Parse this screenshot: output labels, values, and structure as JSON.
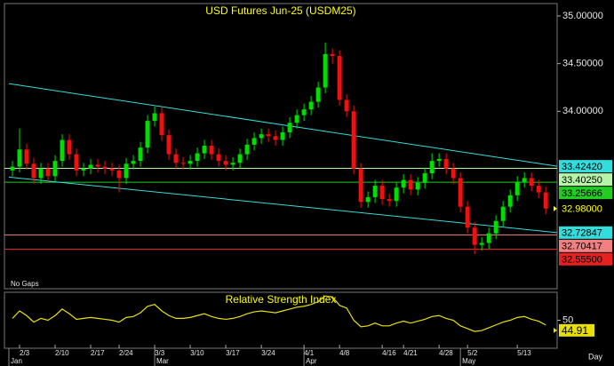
{
  "chart_data": [
    {
      "type": "candlestick",
      "title": "USD  Futures  Jun-25  (USDM25)",
      "note": "No Gaps",
      "open": [
        33.38,
        33.42,
        33.6,
        33.45,
        33.3,
        33.4,
        33.32,
        33.48,
        33.7,
        33.55,
        33.38,
        33.4,
        33.44,
        33.42,
        33.4,
        33.38,
        33.3,
        33.45,
        33.48,
        33.62,
        33.9,
        33.98,
        33.75,
        33.55,
        33.46,
        33.45,
        33.48,
        33.56,
        33.64,
        33.55,
        33.48,
        33.44,
        33.46,
        33.55,
        33.65,
        33.72,
        33.76,
        33.74,
        33.7,
        33.78,
        33.88,
        33.96,
        34.02,
        34.1,
        34.25,
        34.6,
        34.58,
        34.12,
        34.0,
        33.4,
        33.05,
        33.1,
        33.22,
        33.08,
        33.06,
        33.2,
        33.28,
        33.18,
        33.25,
        33.35,
        33.48,
        33.5,
        33.4,
        33.3,
        33.0,
        32.78,
        32.6,
        32.62,
        32.72,
        32.85,
        33.0,
        33.12,
        33.26,
        33.3,
        33.22,
        33.15
      ],
      "high": [
        33.48,
        33.82,
        33.66,
        33.51,
        33.46,
        33.46,
        33.54,
        33.76,
        33.76,
        33.61,
        33.46,
        33.5,
        33.5,
        33.48,
        33.46,
        33.44,
        33.51,
        33.54,
        33.68,
        33.96,
        34.05,
        34.04,
        33.81,
        33.61,
        33.52,
        33.54,
        33.62,
        33.7,
        33.7,
        33.61,
        33.54,
        33.52,
        33.61,
        33.71,
        33.78,
        33.82,
        33.82,
        33.8,
        33.84,
        33.94,
        34.02,
        34.08,
        34.16,
        34.31,
        34.72,
        34.66,
        34.64,
        34.18,
        34.06,
        33.46,
        33.16,
        33.28,
        33.28,
        33.14,
        33.26,
        33.34,
        33.34,
        33.31,
        33.41,
        33.56,
        33.56,
        33.56,
        33.46,
        33.36,
        33.06,
        32.84,
        32.68,
        32.78,
        32.91,
        33.06,
        33.18,
        33.32,
        33.36,
        33.36,
        33.28,
        33.21
      ],
      "low": [
        33.32,
        33.36,
        33.39,
        33.24,
        33.24,
        33.26,
        33.26,
        33.42,
        33.49,
        33.32,
        33.32,
        33.34,
        33.36,
        33.34,
        33.32,
        33.15,
        33.24,
        33.39,
        33.42,
        33.56,
        33.84,
        33.69,
        33.49,
        33.4,
        33.39,
        33.39,
        33.42,
        33.5,
        33.49,
        33.42,
        33.38,
        33.38,
        33.4,
        33.49,
        33.59,
        33.66,
        33.68,
        33.64,
        33.64,
        33.72,
        33.82,
        33.9,
        33.96,
        34.04,
        34.19,
        34.5,
        34.06,
        33.94,
        33.34,
        32.99,
        32.99,
        33.04,
        33.02,
        33.0,
        33.0,
        33.14,
        33.12,
        33.12,
        33.19,
        33.29,
        33.42,
        33.34,
        33.24,
        32.94,
        32.72,
        32.5,
        32.54,
        32.56,
        32.66,
        32.79,
        32.94,
        33.06,
        33.2,
        33.16,
        33.09,
        32.92
      ],
      "close": [
        33.42,
        33.6,
        33.45,
        33.3,
        33.4,
        33.32,
        33.48,
        33.7,
        33.55,
        33.38,
        33.4,
        33.44,
        33.42,
        33.4,
        33.38,
        33.3,
        33.45,
        33.48,
        33.62,
        33.9,
        33.98,
        33.75,
        33.55,
        33.46,
        33.45,
        33.48,
        33.56,
        33.64,
        33.55,
        33.48,
        33.44,
        33.46,
        33.55,
        33.65,
        33.72,
        33.76,
        33.74,
        33.7,
        33.78,
        33.88,
        33.96,
        34.02,
        34.1,
        34.25,
        34.6,
        34.58,
        34.12,
        34.0,
        33.4,
        33.05,
        33.1,
        33.22,
        33.08,
        33.06,
        33.2,
        33.28,
        33.18,
        33.25,
        33.35,
        33.48,
        33.5,
        33.4,
        33.3,
        33.0,
        32.78,
        32.6,
        32.62,
        32.72,
        32.85,
        33.0,
        33.12,
        33.26,
        33.3,
        33.22,
        33.15,
        32.98
      ],
      "up_color": "#00dd00",
      "down_color": "#ee1111",
      "xlim": [
        -0.5,
        76.6
      ],
      "ylim": [
        32.14,
        35.13
      ],
      "yticks": [
        {
          "value": 35,
          "label": "35.00000"
        },
        {
          "value": 34.5,
          "label": "34.50000"
        },
        {
          "value": 34,
          "label": "34.00000"
        }
      ],
      "trendlines": [
        {
          "x": [
            -0.5,
            76.6
          ],
          "values": [
            34.29,
            33.4242
          ],
          "end_label": "33.42420",
          "color": "#33dddd"
        },
        {
          "x": [
            -0.5,
            76.6
          ],
          "values": [
            33.31,
            32.72847
          ],
          "end_label": "32.72847",
          "color": "#33dddd"
        }
      ],
      "levels": [
        {
          "value": 33.4025,
          "label": "33.40250",
          "color": "#b6f5a8"
        },
        {
          "value": 33.25666,
          "label": "33.25666",
          "color": "#22cc22"
        },
        {
          "value": 32.70417,
          "label": "32.70417",
          "color": "#f28080"
        },
        {
          "value": 32.555,
          "label": "32.55500",
          "color": "#e82020"
        }
      ],
      "last": {
        "value": 32.98,
        "label": "32.98000",
        "color": "#ffff00"
      }
    },
    {
      "type": "line",
      "title": "Relative Strength Index",
      "color": "#e8e000",
      "values": [
        52,
        60,
        55,
        48,
        52,
        50,
        55,
        62,
        57,
        51,
        52,
        53,
        52,
        51,
        50,
        48,
        53,
        54,
        58,
        65,
        67,
        60,
        55,
        52,
        52,
        53,
        55,
        57,
        54,
        52,
        51,
        52,
        54,
        57,
        59,
        60,
        59,
        58,
        60,
        62,
        64,
        65,
        67,
        70,
        76,
        75,
        66,
        63,
        50,
        43,
        44,
        47,
        44,
        44,
        47,
        49,
        47,
        49,
        51,
        54,
        55,
        52,
        50,
        44,
        41,
        38,
        39,
        42,
        45,
        48,
        50,
        53,
        54,
        51,
        49,
        44.91
      ],
      "ylim": [
        20,
        80
      ],
      "yticks": [
        50
      ],
      "xticks": [
        {
          "value": 1,
          "label": "2/3"
        },
        {
          "value": 6,
          "label": "2/10"
        },
        {
          "value": 11,
          "label": "2/17"
        },
        {
          "value": 15,
          "label": "2/24"
        },
        {
          "value": 20,
          "label": "3/3"
        },
        {
          "value": 25,
          "label": "3/10"
        },
        {
          "value": 30,
          "label": "3/17"
        },
        {
          "value": 35,
          "label": "3/24"
        },
        {
          "value": 41,
          "label": "4/1"
        },
        {
          "value": 46,
          "label": "4/8"
        },
        {
          "value": 52,
          "label": "4/16"
        },
        {
          "value": 55,
          "label": "4/21"
        },
        {
          "value": 60,
          "label": "4/28"
        },
        {
          "value": 64,
          "label": "5/2"
        },
        {
          "value": 71,
          "label": "5/13"
        }
      ],
      "months": [
        {
          "value": -0.5,
          "label": "Jan"
        },
        {
          "value": 20,
          "label": "Mar"
        },
        {
          "value": 41,
          "label": "Apr"
        },
        {
          "value": 63,
          "label": "May"
        }
      ],
      "xlabel": "Day"
    }
  ]
}
